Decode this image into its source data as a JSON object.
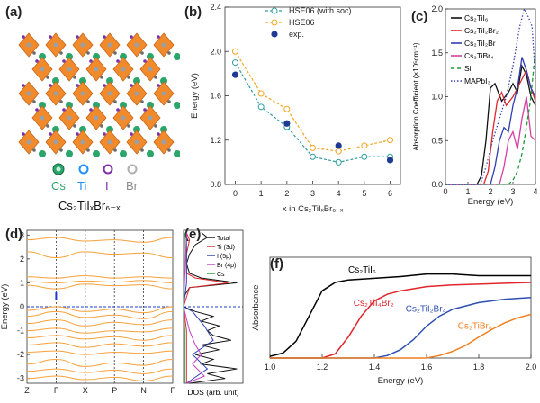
{
  "panels": {
    "a": {
      "label": "(a)",
      "legend": {
        "items": [
          {
            "name": "Cs",
            "color": "#2aa66a"
          },
          {
            "name": "Ti",
            "color": "#1e90ff"
          },
          {
            "name": "I",
            "color": "#7b2fa8"
          },
          {
            "name": "Br",
            "color": "#8a8a8a"
          }
        ],
        "formula": "Cs₂TiIₓBr₆₋ₓ"
      }
    },
    "b": {
      "label": "(b)"
    },
    "c": {
      "label": "(c)"
    },
    "d": {
      "label": "(d)"
    },
    "e": {
      "label": "(e)"
    },
    "f": {
      "label": "(f)"
    }
  },
  "colors": {
    "hse_soc": "#2e9e9e",
    "hse06": "#f5a623",
    "exp": "#1f3a93",
    "band": "#f7a23b",
    "fermi": "#1d3bd1",
    "f_cs2tii6": "#000000",
    "f_cs2tii4br2": "#e0262b",
    "f_cs2tii2br4": "#2f4fb0",
    "f_cs2tibr6": "#f07f1e"
  },
  "chart_data": [
    {
      "id": "b",
      "type": "scatter",
      "xlabel": "x in Cs₂TiIₓBr₆₋ₓ",
      "ylabel": "Energy (eV)",
      "xlim": [
        -0.4,
        6.4
      ],
      "ylim": [
        0.8,
        2.4
      ],
      "xticks": [
        "0",
        "1",
        "2",
        "3",
        "4",
        "5",
        "6"
      ],
      "yticks": [
        "0.8",
        "1.2",
        "1.6",
        "2.0",
        "2.4"
      ],
      "legend_position": "top-right",
      "series": [
        {
          "name": "HSE06 (with soc)",
          "x": [
            0,
            1,
            2,
            3,
            4,
            5,
            6
          ],
          "values": [
            1.9,
            1.5,
            1.32,
            1.05,
            1.0,
            1.05,
            1.05
          ]
        },
        {
          "name": "HSE06",
          "x": [
            0,
            1,
            2,
            3,
            4,
            5,
            6
          ],
          "values": [
            2.0,
            1.62,
            1.48,
            1.13,
            1.1,
            1.15,
            1.2
          ]
        },
        {
          "name": "exp.",
          "x": [
            0,
            2,
            4,
            6
          ],
          "values": [
            1.79,
            1.35,
            1.15,
            1.02
          ]
        }
      ]
    },
    {
      "id": "c",
      "type": "line",
      "xlabel": "Energy (eV)",
      "ylabel": "Absorption Coefficient (×10⁵cm⁻¹)",
      "xlim": [
        0,
        4
      ],
      "ylim": [
        0,
        2.0
      ],
      "xticks": [
        "0",
        "1",
        "2",
        "3",
        "4"
      ],
      "yticks": [
        "0.0",
        "0.5",
        "1.0",
        "1.5",
        "2.0"
      ],
      "legend_position": "top-left",
      "series": [
        {
          "name": "Cs₂TiI₆",
          "color": "#111111",
          "dash": "",
          "x": [
            0,
            1.4,
            1.6,
            1.8,
            2.0,
            2.2,
            2.5,
            2.8,
            3.0,
            3.2,
            3.4,
            3.6,
            3.8,
            4.0
          ],
          "values": [
            0,
            0,
            0.1,
            0.5,
            1.1,
            1.15,
            0.95,
            1.05,
            1.15,
            1.05,
            1.35,
            1.25,
            1.0,
            0.9
          ]
        },
        {
          "name": "Cs₂TiI₂Br₂",
          "color": "#e0262b",
          "dash": "",
          "x": [
            0,
            1.7,
            1.9,
            2.1,
            2.3,
            2.5,
            2.7,
            3.0,
            3.2,
            3.4,
            3.6,
            3.8,
            4.0
          ],
          "values": [
            0,
            0,
            0.15,
            0.6,
            0.95,
            1.05,
            0.9,
            1.0,
            1.1,
            1.2,
            1.3,
            1.1,
            0.95
          ]
        },
        {
          "name": "Cs₂TiI₂Br",
          "color": "#2f3fb0",
          "dash": "",
          "x": [
            0,
            2.0,
            2.2,
            2.4,
            2.6,
            2.8,
            3.0,
            3.2,
            3.4,
            3.6,
            3.8,
            4.0
          ],
          "values": [
            0,
            0,
            0.2,
            0.5,
            0.65,
            0.6,
            0.9,
            1.1,
            1.45,
            1.3,
            1.1,
            1.0
          ]
        },
        {
          "name": "Cs₂TiBr₄",
          "color": "#d63ea2",
          "dash": "",
          "x": [
            0,
            2.4,
            2.6,
            2.8,
            3.0,
            3.2,
            3.4,
            3.6,
            3.8,
            4.0
          ],
          "values": [
            0,
            0,
            0.2,
            0.5,
            0.6,
            0.4,
            0.75,
            1.0,
            0.55,
            0.5
          ]
        },
        {
          "name": "Si",
          "color": "#1d9a3a",
          "dash": "4,3",
          "x": [
            0,
            2.8,
            3.0,
            3.2,
            3.4,
            3.6,
            3.8,
            4.0
          ],
          "values": [
            0,
            0,
            0.05,
            0.15,
            0.35,
            0.65,
            1.0,
            1.55
          ]
        },
        {
          "name": "MAPbI₃",
          "color": "#3a45b8",
          "dash": "1.5,2",
          "x": [
            0,
            1.55,
            1.8,
            2.1,
            2.4,
            2.7,
            3.0,
            3.3,
            3.5,
            3.7,
            3.85,
            4.0
          ],
          "values": [
            0,
            0,
            0.2,
            0.5,
            0.75,
            1.0,
            1.35,
            1.8,
            2.0,
            1.9,
            1.8,
            1.2
          ]
        }
      ]
    },
    {
      "id": "d",
      "type": "line",
      "ylabel": "Energy (eV)",
      "ylim": [
        -3.2,
        3.2
      ],
      "yticks": [
        "-3",
        "-2",
        "-1",
        "0",
        "1",
        "2",
        "3"
      ],
      "xticks": [
        "Z",
        "Γ",
        "X",
        "P",
        "N",
        "Γ"
      ],
      "series": [
        {
          "name": "cb1",
          "x": [
            0,
            1,
            2,
            3,
            4,
            5
          ],
          "values": [
            2.8,
            2.9,
            2.75,
            2.8,
            2.7,
            2.9
          ]
        },
        {
          "name": "cb2",
          "x": [
            0,
            1,
            2,
            3,
            4,
            5
          ],
          "values": [
            2.3,
            2.05,
            2.3,
            2.2,
            2.25,
            2.05
          ]
        },
        {
          "name": "cb3",
          "x": [
            0,
            1,
            2,
            3,
            4,
            5
          ],
          "values": [
            1.25,
            1.2,
            1.3,
            1.2,
            1.25,
            1.2
          ]
        },
        {
          "name": "cb4",
          "x": [
            0,
            1,
            2,
            3,
            4,
            5
          ],
          "values": [
            1.05,
            1.0,
            1.08,
            1.03,
            1.1,
            1.0
          ]
        },
        {
          "name": "cb5",
          "x": [
            0,
            1,
            2,
            3,
            4,
            5
          ],
          "values": [
            0.9,
            0.75,
            0.95,
            0.88,
            0.92,
            0.75
          ]
        },
        {
          "name": "vb1",
          "x": [
            0,
            1,
            2,
            3,
            4,
            5
          ],
          "values": [
            -0.15,
            0.0,
            -0.2,
            -0.1,
            -0.25,
            0.0
          ]
        },
        {
          "name": "vb2",
          "x": [
            0,
            1,
            2,
            3,
            4,
            5
          ],
          "values": [
            -0.4,
            -0.2,
            -0.45,
            -0.35,
            -0.5,
            -0.2
          ]
        },
        {
          "name": "vb3",
          "x": [
            0,
            1,
            2,
            3,
            4,
            5
          ],
          "values": [
            -0.7,
            -0.55,
            -0.8,
            -0.65,
            -0.75,
            -0.55
          ]
        },
        {
          "name": "vb4",
          "x": [
            0,
            1,
            2,
            3,
            4,
            5
          ],
          "values": [
            -1.0,
            -0.9,
            -1.1,
            -1.0,
            -1.05,
            -0.9
          ]
        },
        {
          "name": "vb5",
          "x": [
            0,
            1,
            2,
            3,
            4,
            5
          ],
          "values": [
            -1.3,
            -1.2,
            -1.35,
            -1.25,
            -1.4,
            -1.2
          ]
        },
        {
          "name": "vb6",
          "x": [
            0,
            1,
            2,
            3,
            4,
            5
          ],
          "values": [
            -1.6,
            -1.5,
            -1.7,
            -1.55,
            -1.65,
            -1.5
          ]
        },
        {
          "name": "vb7",
          "x": [
            0,
            1,
            2,
            3,
            4,
            5
          ],
          "values": [
            -1.9,
            -1.85,
            -2.0,
            -1.9,
            -1.95,
            -1.85
          ]
        },
        {
          "name": "vb8",
          "x": [
            0,
            1,
            2,
            3,
            4,
            5
          ],
          "values": [
            -2.4,
            -2.2,
            -2.5,
            -2.35,
            -2.45,
            -2.2
          ]
        },
        {
          "name": "vb9",
          "x": [
            0,
            1,
            2,
            3,
            4,
            5
          ],
          "values": [
            -2.7,
            -2.6,
            -2.75,
            -2.65,
            -2.8,
            -2.6
          ]
        },
        {
          "name": "vb10",
          "x": [
            0,
            1,
            2,
            3,
            4,
            5
          ],
          "values": [
            -3.0,
            -2.9,
            -3.05,
            -2.95,
            -3.1,
            -2.9
          ]
        }
      ]
    },
    {
      "id": "e",
      "type": "line",
      "xlabel": "DOS (arb. unit)",
      "ylim": [
        -3.2,
        3.2
      ],
      "legend_position": "top-right",
      "series": [
        {
          "name": "Total",
          "color": "#111111",
          "y": [
            -3.2,
            -3.0,
            -2.8,
            -2.6,
            -2.4,
            -2.2,
            -2.0,
            -1.8,
            -1.6,
            -1.4,
            -1.2,
            -1.0,
            -0.8,
            -0.6,
            -0.4,
            -0.2,
            0,
            0.4,
            0.8,
            1.0,
            1.2,
            1.4,
            1.8,
            2.2,
            2.6,
            2.9,
            3.1
          ],
          "values": [
            0.1,
            0.7,
            0.4,
            0.9,
            0.3,
            0.5,
            0.2,
            0.6,
            0.3,
            0.8,
            0.5,
            0.4,
            0.6,
            0.3,
            0.5,
            0.2,
            0,
            0,
            0.1,
            0.9,
            0.3,
            0.1,
            0.05,
            0.1,
            0.2,
            0.4,
            0.3
          ]
        },
        {
          "name": "Ti (3d)",
          "color": "#e0262b",
          "y": [
            -3.2,
            -2.0,
            -1.0,
            0,
            0.8,
            1.0,
            1.2,
            1.4,
            2.2,
            2.8,
            3.1
          ],
          "values": [
            0.05,
            0.05,
            0.05,
            0,
            0.1,
            0.75,
            0.2,
            0.05,
            0.05,
            0.1,
            0.05
          ]
        },
        {
          "name": "I (5p)",
          "color": "#2f3fb0",
          "y": [
            -3.2,
            -2.6,
            -2.0,
            -1.4,
            -0.8,
            -0.2,
            0,
            1.0,
            3.1
          ],
          "values": [
            0.05,
            0.4,
            0.15,
            0.5,
            0.35,
            0.15,
            0,
            0.05,
            0.05
          ]
        },
        {
          "name": "Br (4p)",
          "color": "#c040c0",
          "y": [
            -3.2,
            -2.9,
            -2.4,
            -2.0,
            -1.6,
            -1.0,
            0,
            3.1
          ],
          "values": [
            0.05,
            0.35,
            0.15,
            0.3,
            0.2,
            0.1,
            0,
            0.05
          ]
        },
        {
          "name": "Cs",
          "color": "#1d9a3a",
          "y": [
            -3.2,
            -1.0,
            0,
            3.1
          ],
          "values": [
            0.02,
            0.02,
            0,
            0.02
          ]
        }
      ]
    },
    {
      "id": "f",
      "type": "line",
      "xlabel": "Energy (eV)",
      "ylabel": "Absorbance",
      "xlim": [
        1.0,
        2.0
      ],
      "ylim": [
        0,
        1.2
      ],
      "xticks": [
        "1.0",
        "1.2",
        "1.4",
        "1.6",
        "1.8",
        "2.0"
      ],
      "series": [
        {
          "name": "Cs₂TiI₆",
          "color": "#000000",
          "x": [
            1.0,
            1.05,
            1.1,
            1.15,
            1.2,
            1.25,
            1.3,
            1.4,
            1.5,
            1.6,
            1.7,
            1.8,
            1.9,
            2.0
          ],
          "values": [
            0.02,
            0.06,
            0.2,
            0.5,
            0.8,
            0.9,
            0.93,
            0.95,
            0.97,
            1.0,
            1.0,
            0.98,
            0.98,
            0.98
          ]
        },
        {
          "name": "Cs₂TiI₄Br₂",
          "color": "#e0262b",
          "x": [
            1.0,
            1.2,
            1.25,
            1.3,
            1.35,
            1.4,
            1.45,
            1.5,
            1.6,
            1.7,
            1.8,
            1.9,
            2.0
          ],
          "values": [
            0.0,
            0.0,
            0.05,
            0.25,
            0.5,
            0.68,
            0.76,
            0.8,
            0.85,
            0.87,
            0.88,
            0.89,
            0.9
          ]
        },
        {
          "name": "Cs₂TiI₂Br₄",
          "color": "#2f4fb0",
          "x": [
            1.0,
            1.4,
            1.45,
            1.5,
            1.55,
            1.6,
            1.65,
            1.7,
            1.8,
            1.9,
            2.0
          ],
          "values": [
            0.0,
            0.0,
            0.03,
            0.1,
            0.22,
            0.38,
            0.5,
            0.58,
            0.66,
            0.7,
            0.72
          ]
        },
        {
          "name": "Cs₂TiBr₆",
          "color": "#f07f1e",
          "x": [
            1.0,
            1.6,
            1.65,
            1.7,
            1.75,
            1.8,
            1.85,
            1.9,
            1.95,
            2.0
          ],
          "values": [
            0.0,
            0.0,
            0.03,
            0.08,
            0.15,
            0.25,
            0.34,
            0.42,
            0.48,
            0.52
          ]
        }
      ]
    }
  ]
}
